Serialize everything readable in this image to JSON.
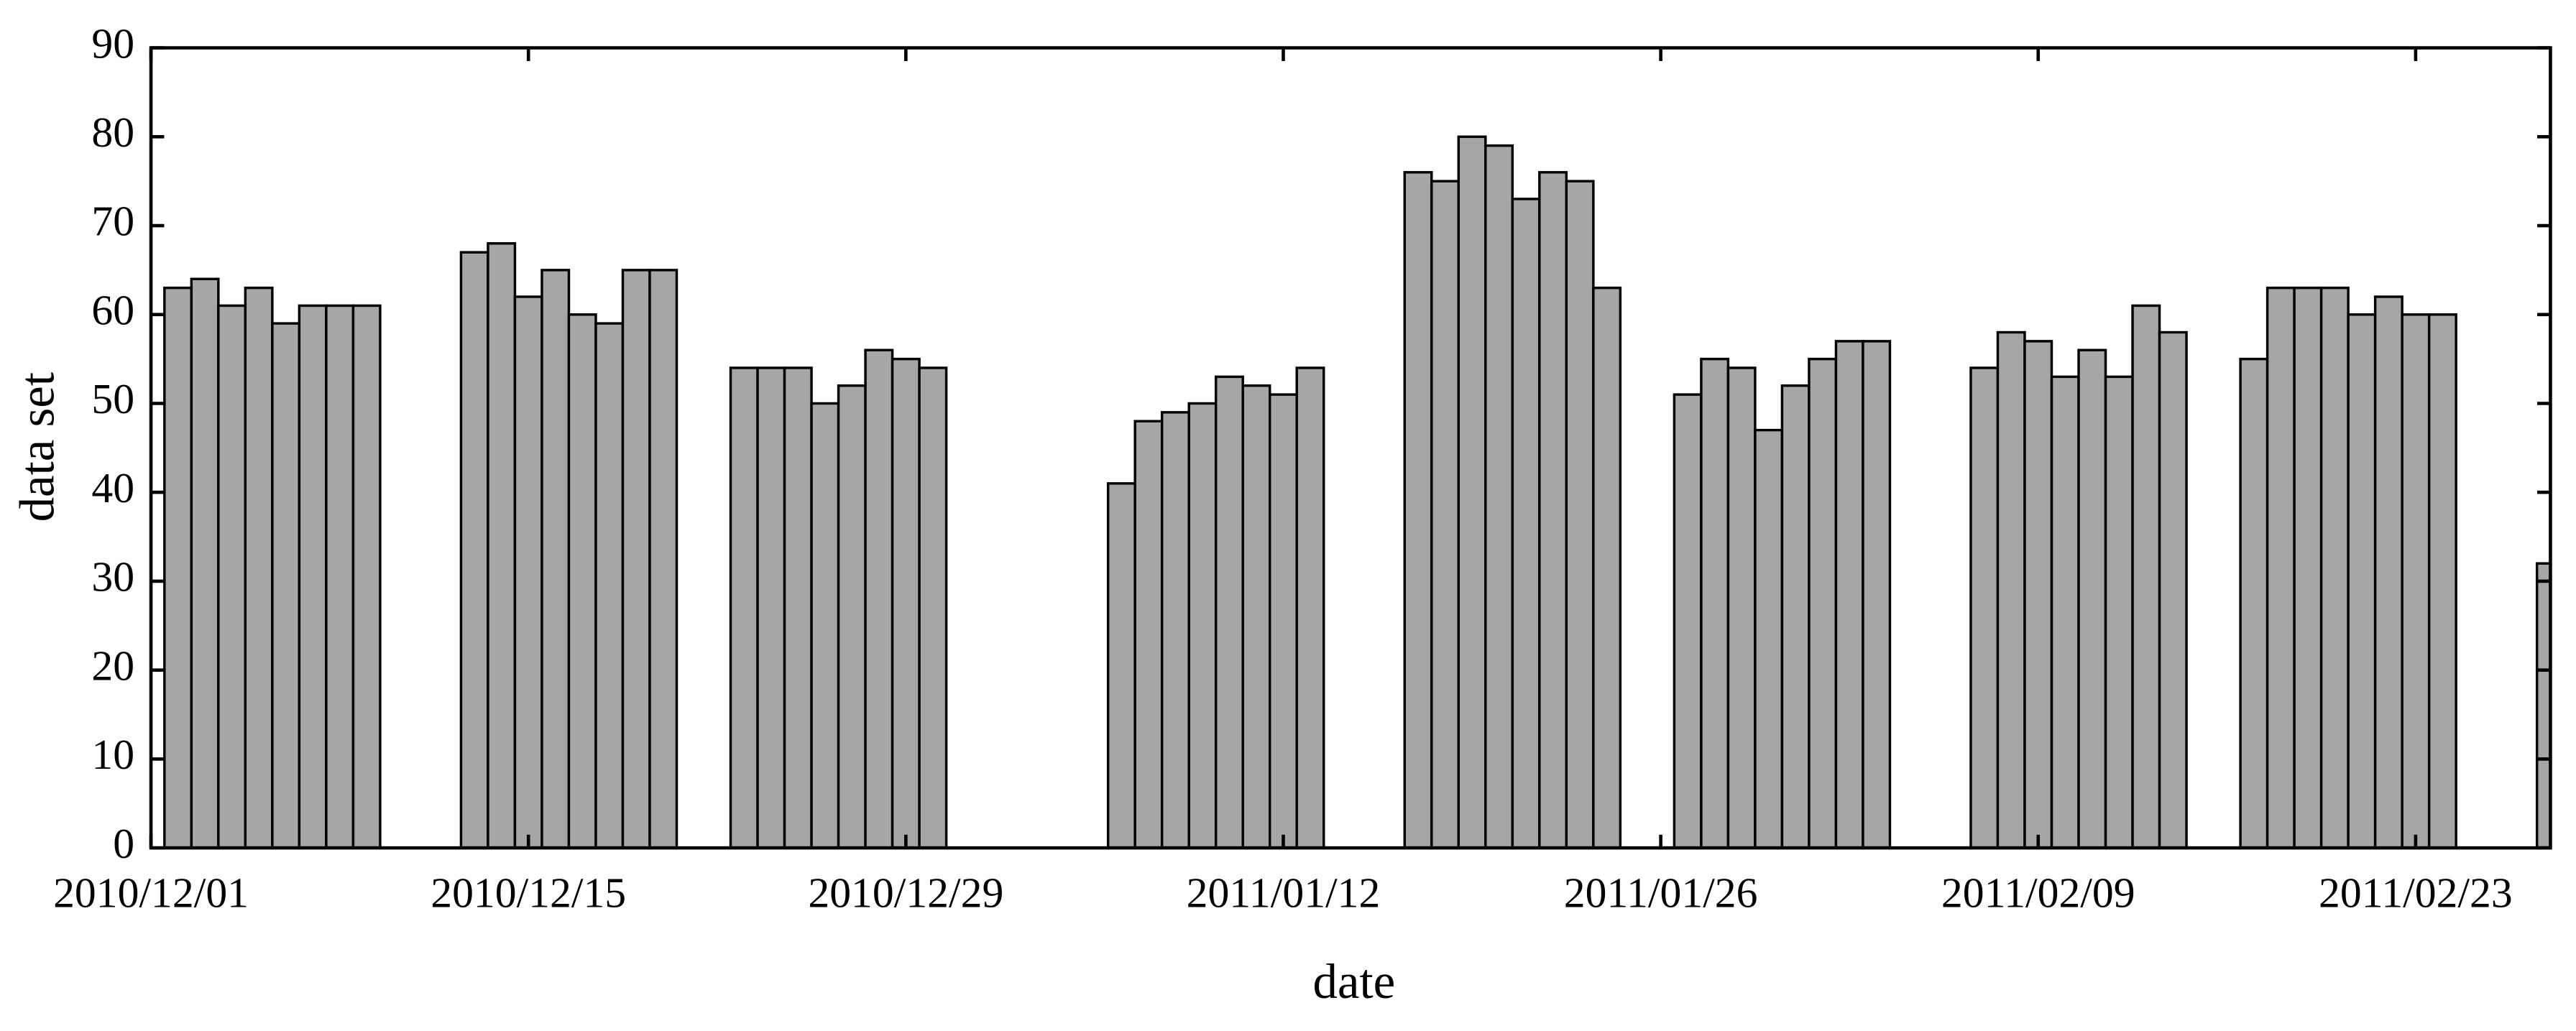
{
  "chart_data": {
    "type": "bar",
    "x_label": "date",
    "y_label": "data set",
    "x": [
      "2010/12/02",
      "2010/12/03",
      "2010/12/04",
      "2010/12/05",
      "2010/12/06",
      "2010/12/07",
      "2010/12/08",
      "2010/12/09",
      "2010/12/13",
      "2010/12/14",
      "2010/12/15",
      "2010/12/16",
      "2010/12/17",
      "2010/12/18",
      "2010/12/19",
      "2010/12/20",
      "2010/12/23",
      "2010/12/24",
      "2010/12/25",
      "2010/12/26",
      "2010/12/27",
      "2010/12/28",
      "2010/12/29",
      "2010/12/30",
      "2011/01/06",
      "2011/01/07",
      "2011/01/08",
      "2011/01/09",
      "2011/01/10",
      "2011/01/11",
      "2011/01/12",
      "2011/01/13",
      "2011/01/17",
      "2011/01/18",
      "2011/01/19",
      "2011/01/20",
      "2011/01/21",
      "2011/01/22",
      "2011/01/23",
      "2011/01/24",
      "2011/01/27",
      "2011/01/28",
      "2011/01/29",
      "2011/01/30",
      "2011/01/31",
      "2011/02/01",
      "2011/02/02",
      "2011/02/03",
      "2011/02/07",
      "2011/02/08",
      "2011/02/09",
      "2011/02/10",
      "2011/02/11",
      "2011/02/12",
      "2011/02/13",
      "2011/02/14",
      "2011/02/17",
      "2011/02/18",
      "2011/02/19",
      "2011/02/20",
      "2011/02/21",
      "2011/02/22",
      "2011/02/23",
      "2011/02/24",
      "2011/02/28"
    ],
    "values": [
      63,
      64,
      61,
      63,
      59,
      61,
      61,
      61,
      67,
      68,
      62,
      65,
      60,
      59,
      65,
      65,
      54,
      54,
      54,
      50,
      52,
      56,
      55,
      54,
      41,
      48,
      49,
      50,
      53,
      52,
      51,
      54,
      76,
      75,
      80,
      79,
      73,
      76,
      75,
      63,
      51,
      55,
      54,
      47,
      52,
      55,
      57,
      57,
      54,
      58,
      57,
      53,
      56,
      53,
      61,
      58,
      55,
      63,
      63,
      63,
      60,
      62,
      60,
      60,
      32
    ],
    "color": "#a6a6a6",
    "xlim": [
      "2010/12/01",
      "2011/02/28"
    ],
    "xticks": [
      "2010/12/01",
      "2010/12/15",
      "2010/12/29",
      "2011/01/12",
      "2011/01/26",
      "2011/02/09",
      "2011/02/23"
    ],
    "ylim": [
      0,
      90
    ],
    "yticks": [
      0,
      10,
      20,
      30,
      40,
      50,
      60,
      70,
      80,
      90
    ],
    "grid": false
  }
}
